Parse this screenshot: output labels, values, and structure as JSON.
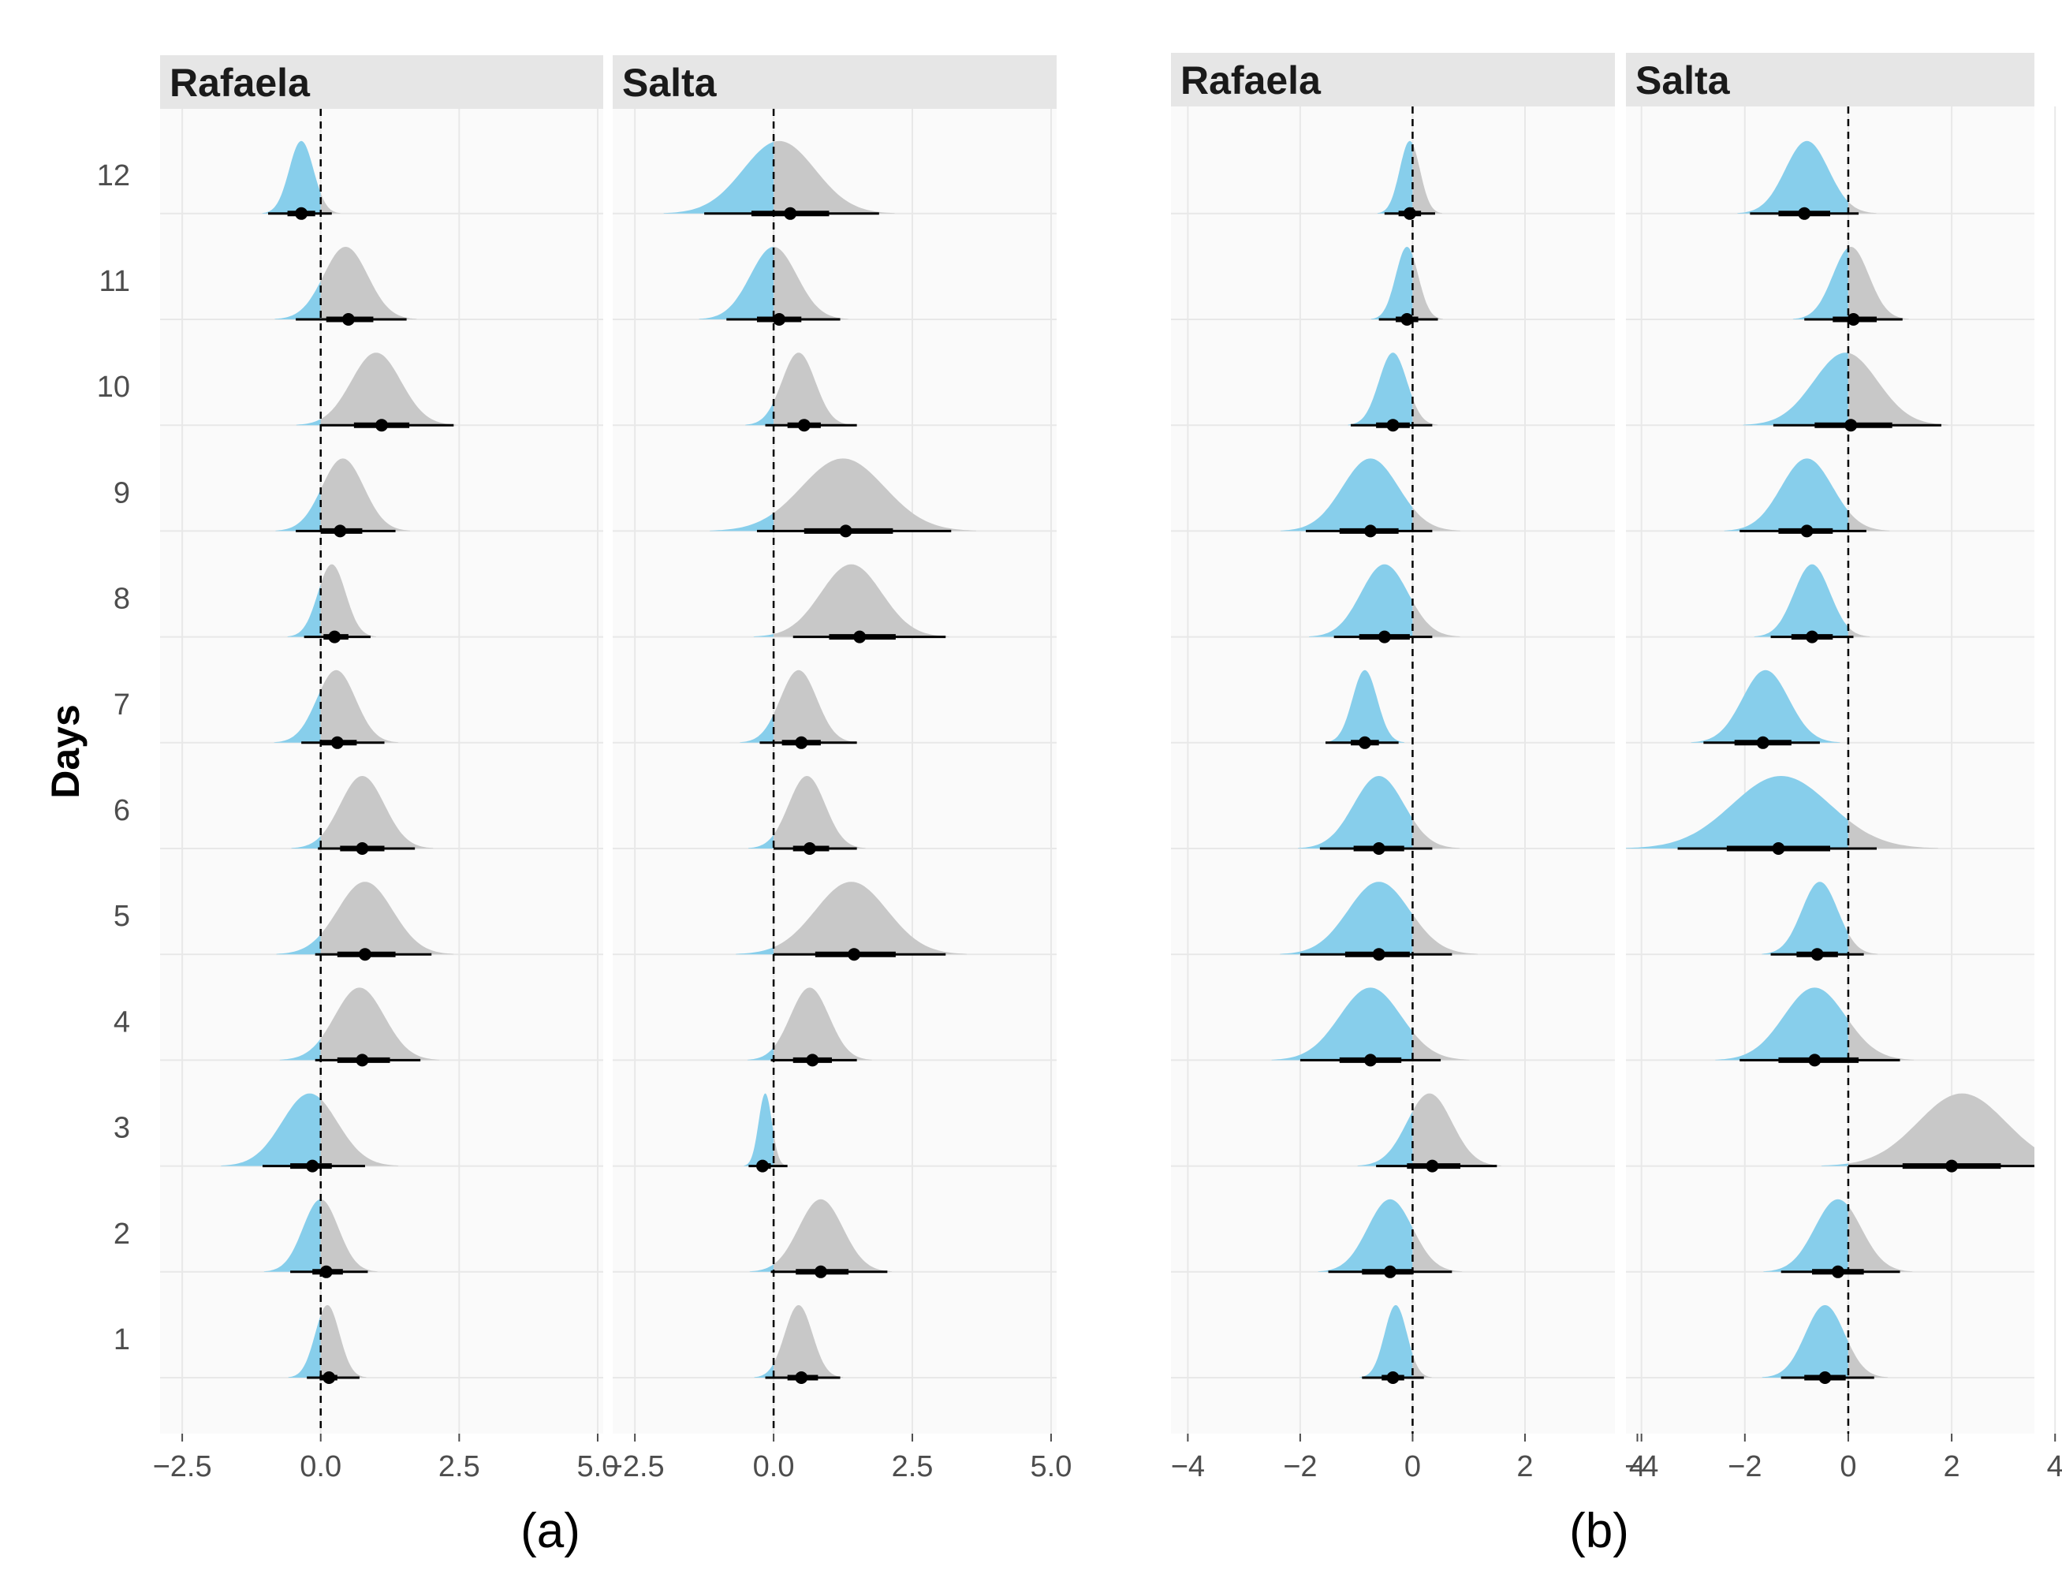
{
  "chart_data": [
    {
      "type": "halfeye",
      "subfigure_label": "(a)",
      "ylabel": "Days",
      "y_categories": [
        "1",
        "2",
        "3",
        "4",
        "5",
        "6",
        "7",
        "8",
        "9",
        "10",
        "11",
        "12"
      ],
      "xlim": [
        -2.9,
        5.1
      ],
      "x_ticks": [
        -2.5,
        0.0,
        2.5,
        5.0
      ],
      "x_tick_labels": [
        "−2.5",
        "0.0",
        "2.5",
        "5.0"
      ],
      "reference_line": 0,
      "panels": [
        {
          "title": "Rafaela",
          "days": [
            {
              "day": 1,
              "median": 0.15,
              "sd": 0.22,
              "peak": 0.12,
              "skew": 0.0,
              "inner": [
                -0.02,
                0.3
              ],
              "outer": [
                -0.25,
                0.7
              ]
            },
            {
              "day": 2,
              "median": 0.1,
              "sd": 0.32,
              "peak": 0.0,
              "skew": 0.0,
              "inner": [
                -0.15,
                0.4
              ],
              "outer": [
                -0.55,
                0.85
              ]
            },
            {
              "day": 3,
              "median": -0.15,
              "sd": 0.5,
              "peak": -0.2,
              "skew": 0.3,
              "inner": [
                -0.55,
                0.2
              ],
              "outer": [
                -1.05,
                0.8
              ]
            },
            {
              "day": 4,
              "median": 0.75,
              "sd": 0.45,
              "peak": 0.7,
              "skew": 0.0,
              "inner": [
                0.3,
                1.25
              ],
              "outer": [
                -0.1,
                1.8
              ]
            },
            {
              "day": 5,
              "median": 0.8,
              "sd": 0.5,
              "peak": 0.8,
              "skew": 0.0,
              "inner": [
                0.3,
                1.35
              ],
              "outer": [
                -0.1,
                2.0
              ]
            },
            {
              "day": 6,
              "median": 0.75,
              "sd": 0.4,
              "peak": 0.75,
              "skew": 0.0,
              "inner": [
                0.35,
                1.15
              ],
              "outer": [
                -0.05,
                1.7
              ]
            },
            {
              "day": 7,
              "median": 0.3,
              "sd": 0.35,
              "peak": 0.28,
              "skew": 0.0,
              "inner": [
                0.0,
                0.65
              ],
              "outer": [
                -0.35,
                1.15
              ]
            },
            {
              "day": 8,
              "median": 0.25,
              "sd": 0.25,
              "peak": 0.2,
              "skew": 0.0,
              "inner": [
                0.05,
                0.5
              ],
              "outer": [
                -0.3,
                0.9
              ]
            },
            {
              "day": 9,
              "median": 0.35,
              "sd": 0.38,
              "peak": 0.4,
              "skew": 0.0,
              "inner": [
                0.0,
                0.75
              ],
              "outer": [
                -0.45,
                1.35
              ]
            },
            {
              "day": 10,
              "median": 1.1,
              "sd": 0.45,
              "peak": 1.0,
              "skew": 0.0,
              "inner": [
                0.6,
                1.6
              ],
              "outer": [
                0.0,
                2.4
              ]
            },
            {
              "day": 11,
              "median": 0.5,
              "sd": 0.4,
              "peak": 0.45,
              "skew": 0.0,
              "inner": [
                0.1,
                0.95
              ],
              "outer": [
                -0.45,
                1.55
              ]
            },
            {
              "day": 12,
              "median": -0.35,
              "sd": 0.22,
              "peak": -0.35,
              "skew": 0.0,
              "inner": [
                -0.6,
                -0.1
              ],
              "outer": [
                -0.95,
                0.2
              ]
            }
          ]
        },
        {
          "title": "Salta",
          "days": [
            {
              "day": 1,
              "median": 0.5,
              "sd": 0.25,
              "peak": 0.45,
              "skew": 0.0,
              "inner": [
                0.25,
                0.8
              ],
              "outer": [
                -0.15,
                1.2
              ]
            },
            {
              "day": 2,
              "median": 0.85,
              "sd": 0.4,
              "peak": 0.85,
              "skew": 0.0,
              "inner": [
                0.4,
                1.35
              ],
              "outer": [
                -0.05,
                2.05
              ]
            },
            {
              "day": 3,
              "median": -0.2,
              "sd": 0.12,
              "peak": -0.15,
              "skew": 0.0,
              "inner": [
                -0.3,
                -0.05
              ],
              "outer": [
                -0.45,
                0.25
              ]
            },
            {
              "day": 4,
              "median": 0.7,
              "sd": 0.35,
              "peak": 0.65,
              "skew": 0.0,
              "inner": [
                0.35,
                1.05
              ],
              "outer": [
                -0.05,
                1.5
              ]
            },
            {
              "day": 5,
              "median": 1.45,
              "sd": 0.65,
              "peak": 1.4,
              "skew": 0.0,
              "inner": [
                0.75,
                2.2
              ],
              "outer": [
                0.0,
                3.1
              ]
            },
            {
              "day": 6,
              "median": 0.65,
              "sd": 0.33,
              "peak": 0.6,
              "skew": 0.0,
              "inner": [
                0.35,
                1.0
              ],
              "outer": [
                0.0,
                1.5
              ]
            },
            {
              "day": 7,
              "median": 0.5,
              "sd": 0.33,
              "peak": 0.45,
              "skew": 0.0,
              "inner": [
                0.15,
                0.85
              ],
              "outer": [
                -0.25,
                1.5
              ]
            },
            {
              "day": 8,
              "median": 1.55,
              "sd": 0.55,
              "peak": 1.4,
              "skew": 0.0,
              "inner": [
                1.0,
                2.2
              ],
              "outer": [
                0.35,
                3.1
              ]
            },
            {
              "day": 9,
              "median": 1.3,
              "sd": 0.75,
              "peak": 1.25,
              "skew": 0.0,
              "inner": [
                0.55,
                2.15
              ],
              "outer": [
                -0.3,
                3.2
              ]
            },
            {
              "day": 10,
              "median": 0.55,
              "sd": 0.3,
              "peak": 0.45,
              "skew": 0.0,
              "inner": [
                0.25,
                0.85
              ],
              "outer": [
                -0.15,
                1.5
              ]
            },
            {
              "day": 11,
              "median": 0.1,
              "sd": 0.42,
              "peak": 0.0,
              "skew": 0.0,
              "inner": [
                -0.3,
                0.5
              ],
              "outer": [
                -0.85,
                1.2
              ]
            },
            {
              "day": 12,
              "median": 0.3,
              "sd": 0.65,
              "peak": 0.1,
              "skew": 0.0,
              "inner": [
                -0.4,
                1.0
              ],
              "outer": [
                -1.25,
                1.9
              ]
            }
          ]
        }
      ]
    },
    {
      "type": "halfeye",
      "subfigure_label": "(b)",
      "ylabel": "",
      "y_categories": [
        "1",
        "2",
        "3",
        "4",
        "5",
        "6",
        "7",
        "8",
        "9",
        "10",
        "11",
        "12"
      ],
      "xlim": [
        -4.3,
        3.6
      ],
      "x_ticks": [
        -4,
        -2,
        0,
        2,
        4
      ],
      "x_tick_labels": [
        "−4",
        "−2",
        "0",
        "2",
        "4"
      ],
      "reference_line": 0,
      "panels": [
        {
          "title": "Rafaela",
          "days": [
            {
              "day": 1,
              "median": -0.35,
              "sd": 0.2,
              "peak": -0.3,
              "skew": 0.0,
              "inner": [
                -0.55,
                -0.15
              ],
              "outer": [
                -0.9,
                0.2
              ]
            },
            {
              "day": 2,
              "median": -0.4,
              "sd": 0.4,
              "peak": -0.4,
              "skew": 0.0,
              "inner": [
                -0.9,
                0.0
              ],
              "outer": [
                -1.5,
                0.7
              ]
            },
            {
              "day": 3,
              "median": 0.35,
              "sd": 0.4,
              "peak": 0.3,
              "skew": 0.0,
              "inner": [
                -0.1,
                0.85
              ],
              "outer": [
                -0.65,
                1.5
              ]
            },
            {
              "day": 4,
              "median": -0.75,
              "sd": 0.55,
              "peak": -0.75,
              "skew": 0.0,
              "inner": [
                -1.3,
                -0.2
              ],
              "outer": [
                -2.0,
                0.5
              ]
            },
            {
              "day": 5,
              "median": -0.6,
              "sd": 0.55,
              "peak": -0.6,
              "skew": 0.0,
              "inner": [
                -1.2,
                -0.05
              ],
              "outer": [
                -2.0,
                0.7
              ]
            },
            {
              "day": 6,
              "median": -0.6,
              "sd": 0.45,
              "peak": -0.6,
              "skew": 0.0,
              "inner": [
                -1.05,
                -0.15
              ],
              "outer": [
                -1.65,
                0.35
              ]
            },
            {
              "day": 7,
              "median": -0.85,
              "sd": 0.22,
              "peak": -0.85,
              "skew": 0.0,
              "inner": [
                -1.1,
                -0.6
              ],
              "outer": [
                -1.55,
                -0.25
              ]
            },
            {
              "day": 8,
              "median": -0.5,
              "sd": 0.42,
              "peak": -0.5,
              "skew": 0.0,
              "inner": [
                -0.95,
                -0.05
              ],
              "outer": [
                -1.4,
                0.35
              ]
            },
            {
              "day": 9,
              "median": -0.75,
              "sd": 0.5,
              "peak": -0.75,
              "skew": 0.0,
              "inner": [
                -1.3,
                -0.25
              ],
              "outer": [
                -1.9,
                0.35
              ]
            },
            {
              "day": 10,
              "median": -0.35,
              "sd": 0.25,
              "peak": -0.35,
              "skew": 0.0,
              "inner": [
                -0.65,
                -0.05
              ],
              "outer": [
                -1.1,
                0.35
              ]
            },
            {
              "day": 11,
              "median": -0.1,
              "sd": 0.2,
              "peak": -0.1,
              "skew": 0.0,
              "inner": [
                -0.3,
                0.1
              ],
              "outer": [
                -0.6,
                0.45
              ]
            },
            {
              "day": 12,
              "median": -0.05,
              "sd": 0.18,
              "peak": -0.05,
              "skew": 0.0,
              "inner": [
                -0.25,
                0.15
              ],
              "outer": [
                -0.5,
                0.4
              ]
            }
          ]
        },
        {
          "title": "Salta",
          "days": [
            {
              "day": 1,
              "median": -0.45,
              "sd": 0.38,
              "peak": -0.45,
              "skew": 0.0,
              "inner": [
                -0.85,
                -0.05
              ],
              "outer": [
                -1.3,
                0.5
              ]
            },
            {
              "day": 2,
              "median": -0.2,
              "sd": 0.45,
              "peak": -0.2,
              "skew": 0.0,
              "inner": [
                -0.7,
                0.3
              ],
              "outer": [
                -1.3,
                1.0
              ]
            },
            {
              "day": 3,
              "median": 2.0,
              "sd": 0.85,
              "peak": 2.2,
              "skew": 0.0,
              "inner": [
                1.05,
                2.95
              ],
              "outer": [
                0.0,
                3.6
              ]
            },
            {
              "day": 4,
              "median": -0.65,
              "sd": 0.6,
              "peak": -0.65,
              "skew": 0.0,
              "inner": [
                -1.35,
                0.2
              ],
              "outer": [
                -2.1,
                1.0
              ]
            },
            {
              "day": 5,
              "median": -0.6,
              "sd": 0.35,
              "peak": -0.55,
              "skew": 0.0,
              "inner": [
                -1.0,
                -0.2
              ],
              "outer": [
                -1.5,
                0.3
              ]
            },
            {
              "day": 6,
              "median": -1.35,
              "sd": 0.95,
              "peak": -1.3,
              "skew": 0.0,
              "inner": [
                -2.35,
                -0.35
              ],
              "outer": [
                -3.3,
                0.55
              ]
            },
            {
              "day": 7,
              "median": -1.65,
              "sd": 0.45,
              "peak": -1.6,
              "skew": 0.0,
              "inner": [
                -2.2,
                -1.1
              ],
              "outer": [
                -2.8,
                -0.55
              ]
            },
            {
              "day": 8,
              "median": -0.7,
              "sd": 0.35,
              "peak": -0.7,
              "skew": 0.0,
              "inner": [
                -1.1,
                -0.3
              ],
              "outer": [
                -1.5,
                0.1
              ]
            },
            {
              "day": 9,
              "median": -0.8,
              "sd": 0.5,
              "peak": -0.8,
              "skew": 0.0,
              "inner": [
                -1.35,
                -0.3
              ],
              "outer": [
                -2.1,
                0.35
              ]
            },
            {
              "day": 10,
              "median": 0.05,
              "sd": 0.62,
              "peak": -0.05,
              "skew": 0.0,
              "inner": [
                -0.65,
                0.85
              ],
              "outer": [
                -1.45,
                1.8
              ]
            },
            {
              "day": 11,
              "median": 0.1,
              "sd": 0.35,
              "peak": 0.05,
              "skew": 0.0,
              "inner": [
                -0.3,
                0.55
              ],
              "outer": [
                -0.85,
                1.05
              ]
            },
            {
              "day": 12,
              "median": -0.85,
              "sd": 0.42,
              "peak": -0.8,
              "skew": 0.0,
              "inner": [
                -1.35,
                -0.35
              ],
              "outer": [
                -1.9,
                0.2
              ]
            }
          ]
        }
      ]
    }
  ],
  "colors": {
    "negative_fill": "#87ceeb",
    "positive_fill": "#c8c8c8",
    "strip_bg": "#e6e6e6",
    "panel_bg": "#fafafa",
    "grid": "#e8e8e8",
    "interval": "#000000"
  }
}
